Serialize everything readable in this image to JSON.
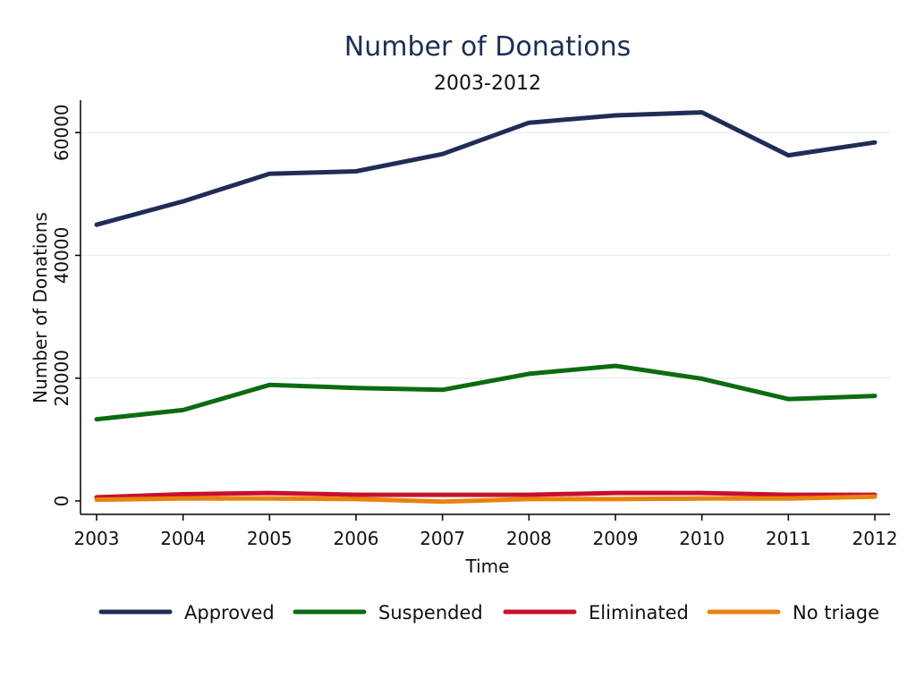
{
  "chart_data": {
    "type": "line",
    "title": "Number of Donations",
    "subtitle": "2003-2012",
    "xlabel": "Time",
    "ylabel": "Number of Donations",
    "categories": [
      "2003",
      "2004",
      "2005",
      "2006",
      "2007",
      "2008",
      "2009",
      "2010",
      "2011",
      "2012"
    ],
    "ylim": [
      0,
      65000
    ],
    "yticks": [
      "0",
      "20000",
      "40000",
      "60000"
    ],
    "grid": true,
    "legend_position": "bottom",
    "series": [
      {
        "name": "Approved",
        "color": "#1f2d56",
        "values": [
          45000,
          48800,
          53300,
          53700,
          56500,
          61600,
          62800,
          63300,
          56300,
          58400
        ]
      },
      {
        "name": "Suspended",
        "color": "#0c6b11",
        "values": [
          13300,
          14800,
          18900,
          18400,
          18100,
          20700,
          22000,
          19900,
          16600,
          17100
        ]
      },
      {
        "name": "Eliminated",
        "color": "#c8102e",
        "values": [
          600,
          1100,
          1300,
          1000,
          1000,
          1000,
          1300,
          1300,
          1000,
          1000
        ]
      },
      {
        "name": "No triage",
        "color": "#e8820c",
        "values": [
          200,
          400,
          400,
          300,
          -100,
          300,
          300,
          400,
          400,
          700
        ]
      }
    ]
  }
}
